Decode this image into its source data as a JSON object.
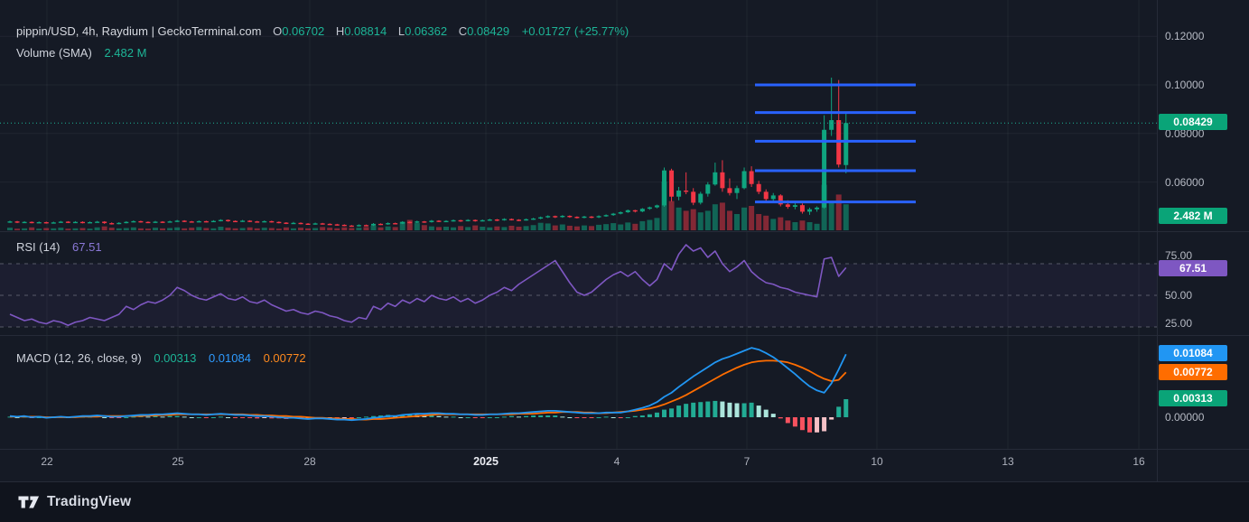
{
  "header": {
    "symbol_title": "pippin/USD, 4h, Raydium | GeckoTerminal.com",
    "ohlc": {
      "o_label": "O",
      "o": "0.06702",
      "h_label": "H",
      "h": "0.08814",
      "l_label": "L",
      "l": "0.06362",
      "c_label": "C",
      "c": "0.08429",
      "change": "+0.01727 (+25.77%)"
    },
    "volume_label": "Volume (SMA)",
    "volume_value": "2.482 M"
  },
  "rsi_pane": {
    "label": "RSI (14)",
    "value": "67.51",
    "badge": "67.51",
    "ticks": [
      "75.00",
      "50.00",
      "25.00"
    ]
  },
  "macd_pane": {
    "label": "MACD (12, 26, close, 9)",
    "values": [
      "0.00313",
      "0.01084",
      "0.00772"
    ],
    "badge_macd": "0.01084",
    "badge_signal": "0.00772",
    "badge_hist": "0.00313",
    "zero_tick": "0.00000"
  },
  "price_axis": {
    "ticks": [
      "0.12000",
      "0.10000",
      "0.08000",
      "0.06000"
    ],
    "price_badge": "0.08429",
    "volume_badge": "2.482 M"
  },
  "x_axis": {
    "labels": [
      "22",
      "25",
      "28",
      "2025",
      "4",
      "7",
      "10",
      "13",
      "16"
    ],
    "major_index": 3
  },
  "watermark": {
    "brand": "TradingView"
  },
  "colors": {
    "background": "#151a25",
    "candle_up": "#0fa47f",
    "candle_down": "#f23645",
    "drawn_level_blue": "#2962ff",
    "macd_line": "#2196f3",
    "signal_line": "#ff6d00",
    "rsi_line": "#7e57c2",
    "badge_green": "#0aa478",
    "badge_purple": "#7e57c2",
    "badge_blue": "#2196f3",
    "badge_orange": "#ff6d00",
    "text_green": "#1db597",
    "axis_text": "#b6bac4",
    "hist_colors": [
      "#22ab94",
      "#ace5dc",
      "#f7525f",
      "#f5c1c6"
    ],
    "vol_up": "rgba(15,164,127,0.55)",
    "vol_down": "rgba(242,54,69,0.5)"
  },
  "chart_data": {
    "type": "candlestick",
    "title": "pippin/USD, 4h, Raydium | GeckoTerminal.com",
    "interval": "4h",
    "x_tick_labels": [
      "22",
      "25",
      "28",
      "2025",
      "4",
      "7",
      "10",
      "13",
      "16"
    ],
    "price_axis_ticks": [
      0.12,
      0.1,
      0.08,
      0.06
    ],
    "current_price": 0.08429,
    "last_candle": {
      "open": 0.06702,
      "high": 0.08814,
      "low": 0.06362,
      "close": 0.08429,
      "change_abs": 0.01727,
      "change_pct": 25.77
    },
    "volume_sma_label": "2.482 M",
    "drawn_levels": [
      0.1,
      0.0886,
      0.0768,
      0.0647,
      0.0518
    ],
    "candles": [
      [
        0.0435,
        0.0441,
        0.0432,
        0.0438,
        0.8
      ],
      [
        0.0438,
        0.044,
        0.0431,
        0.0434,
        0.5
      ],
      [
        0.0434,
        0.0439,
        0.0432,
        0.0436,
        0.6
      ],
      [
        0.0436,
        0.0438,
        0.043,
        0.0433,
        0.9
      ],
      [
        0.0433,
        0.0438,
        0.0431,
        0.0435,
        0.5
      ],
      [
        0.0435,
        0.0437,
        0.0429,
        0.0432,
        0.7
      ],
      [
        0.0432,
        0.0437,
        0.043,
        0.0434,
        0.6
      ],
      [
        0.0434,
        0.044,
        0.0432,
        0.0437,
        0.8
      ],
      [
        0.0437,
        0.0439,
        0.0431,
        0.0434,
        0.5
      ],
      [
        0.0434,
        0.0439,
        0.0432,
        0.0436,
        0.6
      ],
      [
        0.0436,
        0.0438,
        0.043,
        0.0433,
        0.7
      ],
      [
        0.0433,
        0.0438,
        0.0431,
        0.0435,
        0.5
      ],
      [
        0.0435,
        0.044,
        0.0433,
        0.0437,
        0.9
      ],
      [
        0.0437,
        0.0439,
        0.0428,
        0.0431,
        1.2
      ],
      [
        0.0431,
        0.0434,
        0.0425,
        0.0428,
        0.8
      ],
      [
        0.0428,
        0.0435,
        0.0426,
        0.0432,
        0.6
      ],
      [
        0.0432,
        0.0439,
        0.043,
        0.0436,
        0.7
      ],
      [
        0.0436,
        0.0442,
        0.0434,
        0.0439,
        0.9
      ],
      [
        0.0439,
        0.0441,
        0.0433,
        0.0436,
        0.6
      ],
      [
        0.0436,
        0.0438,
        0.0431,
        0.0434,
        0.5
      ],
      [
        0.0434,
        0.044,
        0.0432,
        0.0437,
        0.8
      ],
      [
        0.0437,
        0.0439,
        0.0432,
        0.0435,
        0.6
      ],
      [
        0.0435,
        0.0441,
        0.0433,
        0.0438,
        0.7
      ],
      [
        0.0438,
        0.0444,
        0.0436,
        0.0441,
        0.9
      ],
      [
        0.0441,
        0.0443,
        0.0435,
        0.0438,
        0.6
      ],
      [
        0.0438,
        0.044,
        0.0433,
        0.0436,
        0.8
      ],
      [
        0.0436,
        0.0442,
        0.0434,
        0.0439,
        1.0
      ],
      [
        0.0439,
        0.0441,
        0.0434,
        0.0437,
        0.7
      ],
      [
        0.0437,
        0.0443,
        0.0435,
        0.044,
        0.6
      ],
      [
        0.044,
        0.0447,
        0.0438,
        0.0444,
        1.1
      ],
      [
        0.0444,
        0.0446,
        0.0437,
        0.044,
        0.8
      ],
      [
        0.044,
        0.0442,
        0.0435,
        0.0438,
        0.6
      ],
      [
        0.0438,
        0.0444,
        0.0436,
        0.0441,
        0.7
      ],
      [
        0.0441,
        0.0443,
        0.0435,
        0.0438,
        0.9
      ],
      [
        0.0438,
        0.044,
        0.0433,
        0.0436,
        0.6
      ],
      [
        0.0436,
        0.0442,
        0.0434,
        0.0439,
        0.8
      ],
      [
        0.0439,
        0.0441,
        0.0433,
        0.0436,
        0.7
      ],
      [
        0.0436,
        0.0438,
        0.043,
        0.0433,
        0.5
      ],
      [
        0.0433,
        0.0435,
        0.0427,
        0.043,
        0.9
      ],
      [
        0.043,
        0.0436,
        0.0428,
        0.0432,
        0.6
      ],
      [
        0.0432,
        0.0434,
        0.0426,
        0.0429,
        0.8
      ],
      [
        0.0429,
        0.0431,
        0.0424,
        0.0427,
        0.6
      ],
      [
        0.0427,
        0.0433,
        0.0425,
        0.043,
        0.7
      ],
      [
        0.043,
        0.0432,
        0.0425,
        0.0428,
        1.0
      ],
      [
        0.0428,
        0.043,
        0.0423,
        0.0426,
        0.8
      ],
      [
        0.0426,
        0.0428,
        0.0421,
        0.0424,
        0.6
      ],
      [
        0.0424,
        0.0426,
        0.0418,
        0.0421,
        0.9
      ],
      [
        0.0421,
        0.0423,
        0.0416,
        0.0419,
        0.7
      ],
      [
        0.0419,
        0.0426,
        0.0417,
        0.0423,
        0.8
      ],
      [
        0.0423,
        0.0425,
        0.0418,
        0.0421,
        1.0
      ],
      [
        0.0421,
        0.0431,
        0.0419,
        0.0428,
        1.4
      ],
      [
        0.0428,
        0.043,
        0.0423,
        0.0426,
        0.9
      ],
      [
        0.0426,
        0.0434,
        0.0424,
        0.0431,
        1.2
      ],
      [
        0.0431,
        0.0433,
        0.0426,
        0.0429,
        1.0
      ],
      [
        0.0429,
        0.0439,
        0.0427,
        0.0436,
        2.6
      ],
      [
        0.0436,
        0.0438,
        0.043,
        0.0433,
        3.2
      ],
      [
        0.0433,
        0.0441,
        0.0431,
        0.0438,
        2.2
      ],
      [
        0.0438,
        0.044,
        0.0432,
        0.0435,
        1.6
      ],
      [
        0.0435,
        0.0444,
        0.0433,
        0.0441,
        1.2
      ],
      [
        0.0441,
        0.0443,
        0.0435,
        0.0438,
        1.0
      ],
      [
        0.0438,
        0.0443,
        0.0435,
        0.044,
        1.1
      ],
      [
        0.044,
        0.0446,
        0.0437,
        0.0443,
        0.9
      ],
      [
        0.0443,
        0.0445,
        0.0436,
        0.044,
        1.3
      ],
      [
        0.044,
        0.0447,
        0.0438,
        0.0444,
        1.0
      ],
      [
        0.0444,
        0.0446,
        0.0437,
        0.044,
        1.5
      ],
      [
        0.044,
        0.0446,
        0.0438,
        0.0443,
        1.1
      ],
      [
        0.0443,
        0.0449,
        0.044,
        0.0446,
        0.9
      ],
      [
        0.0446,
        0.0448,
        0.0439,
        0.0443,
        1.2
      ],
      [
        0.0443,
        0.0451,
        0.0441,
        0.0448,
        1.0
      ],
      [
        0.0448,
        0.045,
        0.0442,
        0.0445,
        1.4
      ],
      [
        0.0445,
        0.0447,
        0.0439,
        0.0443,
        1.1
      ],
      [
        0.0443,
        0.045,
        0.0441,
        0.0447,
        1.3
      ],
      [
        0.0447,
        0.0453,
        0.0444,
        0.045,
        1.6
      ],
      [
        0.045,
        0.0458,
        0.0447,
        0.0455,
        2.3
      ],
      [
        0.0455,
        0.0463,
        0.0452,
        0.046,
        2.1
      ],
      [
        0.046,
        0.0462,
        0.0452,
        0.0456,
        1.5
      ],
      [
        0.0456,
        0.0464,
        0.0453,
        0.0461,
        1.8
      ],
      [
        0.0461,
        0.0463,
        0.0453,
        0.0457,
        1.4
      ],
      [
        0.0457,
        0.0459,
        0.045,
        0.0454,
        1.2
      ],
      [
        0.0454,
        0.0461,
        0.0451,
        0.0458,
        1.5
      ],
      [
        0.0458,
        0.046,
        0.0451,
        0.0455,
        1.3
      ],
      [
        0.0455,
        0.0463,
        0.0452,
        0.046,
        1.7
      ],
      [
        0.046,
        0.0467,
        0.0457,
        0.0464,
        1.9
      ],
      [
        0.0464,
        0.0473,
        0.0461,
        0.047,
        2.2
      ],
      [
        0.047,
        0.0479,
        0.0467,
        0.0476,
        1.8
      ],
      [
        0.0476,
        0.0487,
        0.0473,
        0.0484,
        2.4
      ],
      [
        0.0484,
        0.0486,
        0.0475,
        0.0479,
        2.0
      ],
      [
        0.0479,
        0.0493,
        0.0476,
        0.049,
        2.8
      ],
      [
        0.049,
        0.0499,
        0.0486,
        0.0496,
        3.2
      ],
      [
        0.0496,
        0.0507,
        0.0492,
        0.0504,
        3.8
      ],
      [
        0.0504,
        0.066,
        0.0498,
        0.0648,
        15.0
      ],
      [
        0.0648,
        0.0655,
        0.052,
        0.054,
        9.0
      ],
      [
        0.054,
        0.058,
        0.0525,
        0.0565,
        7.0
      ],
      [
        0.0565,
        0.064,
        0.055,
        0.056,
        6.0
      ],
      [
        0.056,
        0.0575,
        0.0505,
        0.0515,
        6.5
      ],
      [
        0.0515,
        0.056,
        0.0508,
        0.0552,
        5.5
      ],
      [
        0.0552,
        0.06,
        0.054,
        0.059,
        6.0
      ],
      [
        0.059,
        0.068,
        0.0585,
        0.064,
        8.0
      ],
      [
        0.064,
        0.069,
        0.056,
        0.0575,
        8.5
      ],
      [
        0.0575,
        0.0615,
        0.0545,
        0.0555,
        6.0
      ],
      [
        0.0555,
        0.0585,
        0.053,
        0.0575,
        5.0
      ],
      [
        0.0575,
        0.066,
        0.057,
        0.0645,
        7.0
      ],
      [
        0.0645,
        0.0665,
        0.058,
        0.0592,
        7.5
      ],
      [
        0.0592,
        0.0605,
        0.055,
        0.056,
        5.0
      ],
      [
        0.056,
        0.057,
        0.052,
        0.053,
        4.5
      ],
      [
        0.053,
        0.0555,
        0.0515,
        0.0545,
        3.5
      ],
      [
        0.0545,
        0.055,
        0.05,
        0.0508,
        4.0
      ],
      [
        0.0508,
        0.0525,
        0.049,
        0.0498,
        3.0
      ],
      [
        0.0498,
        0.0515,
        0.0488,
        0.0505,
        2.5
      ],
      [
        0.0505,
        0.0512,
        0.047,
        0.0478,
        3.0
      ],
      [
        0.0478,
        0.0495,
        0.0465,
        0.0488,
        2.5
      ],
      [
        0.0488,
        0.05,
        0.0478,
        0.0495,
        2.0
      ],
      [
        0.0495,
        0.0875,
        0.049,
        0.0815,
        14.0
      ],
      [
        0.0815,
        0.103,
        0.079,
        0.0855,
        9.0
      ],
      [
        0.0855,
        0.102,
        0.066,
        0.0672,
        11.0
      ],
      [
        0.067,
        0.0881,
        0.0636,
        0.0843,
        8.0
      ]
    ],
    "rsi": {
      "period": 14,
      "current": 67.51,
      "bands": [
        70,
        50,
        30
      ],
      "values": [
        38,
        36,
        34,
        35,
        33,
        32,
        34,
        33,
        31,
        33,
        34,
        36,
        35,
        34,
        36,
        38,
        43,
        41,
        44,
        46,
        45,
        47,
        50,
        55,
        53,
        50,
        48,
        47,
        49,
        51,
        48,
        47,
        49,
        46,
        45,
        47,
        44,
        42,
        40,
        41,
        39,
        38,
        40,
        39,
        37,
        36,
        34,
        33,
        36,
        35,
        43,
        41,
        45,
        43,
        47,
        45,
        48,
        46,
        50,
        48,
        47,
        49,
        46,
        48,
        45,
        47,
        50,
        52,
        55,
        53,
        57,
        60,
        63,
        66,
        69,
        72,
        65,
        58,
        52,
        50,
        52,
        56,
        60,
        63,
        65,
        62,
        65,
        60,
        56,
        60,
        70,
        66,
        76,
        82,
        78,
        80,
        74,
        78,
        70,
        65,
        68,
        72,
        65,
        61,
        58,
        57,
        55,
        54,
        52,
        51,
        50,
        49,
        73,
        74,
        62,
        67.51
      ]
    },
    "macd": {
      "params": [
        12,
        26,
        "close",
        9
      ],
      "current": {
        "hist": 0.00313,
        "macd": 0.01084,
        "signal": 0.00772
      },
      "macd_line": [
        0.0002,
        0.0001,
        0.0002,
        0.0,
        0.0001,
        -0.0001,
        0.0,
        0.0001,
        0.0,
        0.0001,
        0.0002,
        0.0002,
        0.0003,
        0.0002,
        0.0001,
        0.0001,
        0.0002,
        0.0003,
        0.0004,
        0.0004,
        0.0005,
        0.0005,
        0.0006,
        0.0007,
        0.0006,
        0.0005,
        0.0005,
        0.0004,
        0.0005,
        0.0006,
        0.0005,
        0.0004,
        0.0004,
        0.0003,
        0.0002,
        0.0002,
        0.0001,
        0.0,
        -0.0001,
        -0.0001,
        -0.0002,
        -0.0003,
        -0.0002,
        -0.0002,
        -0.0003,
        -0.0004,
        -0.0004,
        -0.0005,
        -0.0004,
        -0.0003,
        -0.0001,
        0.0,
        0.0002,
        0.0002,
        0.0004,
        0.0005,
        0.0006,
        0.0006,
        0.0007,
        0.0007,
        0.0006,
        0.0006,
        0.0005,
        0.0005,
        0.0004,
        0.0004,
        0.0005,
        0.0005,
        0.0006,
        0.0007,
        0.0007,
        0.0008,
        0.0009,
        0.001,
        0.0011,
        0.0011,
        0.001,
        0.0009,
        0.0008,
        0.0007,
        0.0007,
        0.0007,
        0.0008,
        0.0008,
        0.0008,
        0.001,
        0.0013,
        0.0016,
        0.002,
        0.0026,
        0.0035,
        0.0042,
        0.0052,
        0.0061,
        0.007,
        0.0078,
        0.0086,
        0.0094,
        0.01,
        0.0104,
        0.0109,
        0.0114,
        0.0119,
        0.0116,
        0.011,
        0.0103,
        0.0094,
        0.0084,
        0.0074,
        0.0063,
        0.0053,
        0.0046,
        0.0042,
        0.0058,
        0.0082,
        0.0108
      ],
      "signal_line": [
        0.0001,
        0.0001,
        0.0001,
        0.0001,
        0.0001,
        0.0,
        0.0,
        0.0,
        0.0,
        0.0,
        0.0001,
        0.0001,
        0.0001,
        0.0002,
        0.0002,
        0.0002,
        0.0002,
        0.0002,
        0.0002,
        0.0003,
        0.0003,
        0.0004,
        0.0004,
        0.0005,
        0.0005,
        0.0005,
        0.0005,
        0.0005,
        0.0005,
        0.0005,
        0.0005,
        0.0005,
        0.0005,
        0.0004,
        0.0004,
        0.0003,
        0.0003,
        0.0002,
        0.0002,
        0.0001,
        0.0001,
        0.0,
        -0.0001,
        -0.0001,
        -0.0002,
        -0.0002,
        -0.0003,
        -0.0003,
        -0.0004,
        -0.0004,
        -0.0003,
        -0.0003,
        -0.0002,
        -0.0001,
        0.0,
        0.0001,
        0.0002,
        0.0003,
        0.0004,
        0.0005,
        0.0005,
        0.0005,
        0.0005,
        0.0005,
        0.0005,
        0.0005,
        0.0005,
        0.0005,
        0.0005,
        0.0005,
        0.0006,
        0.0006,
        0.0006,
        0.0007,
        0.0008,
        0.0008,
        0.0009,
        0.0009,
        0.0009,
        0.0008,
        0.0008,
        0.0007,
        0.0007,
        0.0008,
        0.0009,
        0.001,
        0.0011,
        0.0013,
        0.0015,
        0.0018,
        0.0022,
        0.0027,
        0.0032,
        0.0038,
        0.0045,
        0.0052,
        0.0059,
        0.0066,
        0.0073,
        0.0079,
        0.0085,
        0.009,
        0.0094,
        0.0096,
        0.0097,
        0.0097,
        0.0096,
        0.0094,
        0.009,
        0.0085,
        0.0079,
        0.0072,
        0.0066,
        0.0062,
        0.0064,
        0.0077
      ]
    }
  }
}
